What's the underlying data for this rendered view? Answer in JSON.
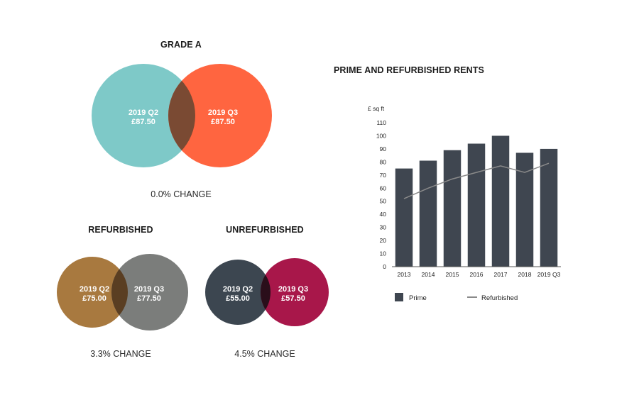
{
  "venns": [
    {
      "title": "GRADE A",
      "left": {
        "period": "2019 Q2",
        "value": "£87.50",
        "color": "#7ec9c8"
      },
      "right": {
        "period": "2019 Q3",
        "value": "£87.50",
        "color": "#ff6540"
      },
      "overlap_color": "#7a4a33",
      "change": "0.0% CHANGE"
    },
    {
      "title": "REFURBISHED",
      "left": {
        "period": "2019 Q2",
        "value": "£75.00",
        "color": "#a8793f"
      },
      "right": {
        "period": "2019 Q3",
        "value": "£77.50",
        "color": "#7b7d7b"
      },
      "overlap_color": "#5a3e22",
      "change": "3.3% CHANGE"
    },
    {
      "title": "UNREFURBISHED",
      "left": {
        "period": "2019 Q2",
        "value": "£55.00",
        "color": "#3c4650"
      },
      "right": {
        "period": "2019 Q3",
        "value": "£57.50",
        "color": "#a8174a"
      },
      "overlap_color": "#2a0e1a",
      "change": "4.5% CHANGE"
    }
  ],
  "chart_data": {
    "type": "bar",
    "title": "PRIME AND REFURBISHED RENTS",
    "ylabel": "£ sq ft",
    "xlabel": "",
    "ylim": [
      0,
      110
    ],
    "yticks": [
      0,
      10,
      20,
      30,
      40,
      50,
      60,
      70,
      80,
      90,
      100,
      110
    ],
    "categories": [
      "2013",
      "2014",
      "2015",
      "2016",
      "2017",
      "2018",
      "2019 Q3"
    ],
    "series": [
      {
        "name": "Prime",
        "type": "bar",
        "color": "#3f4650",
        "values": [
          75,
          81,
          89,
          94,
          100,
          87,
          90
        ]
      },
      {
        "name": "Refurbished",
        "type": "line",
        "color": "#8a8a8a",
        "values": [
          52,
          60,
          67,
          72,
          77,
          72,
          79
        ]
      }
    ],
    "legend": "bottom-left",
    "grid": false
  }
}
